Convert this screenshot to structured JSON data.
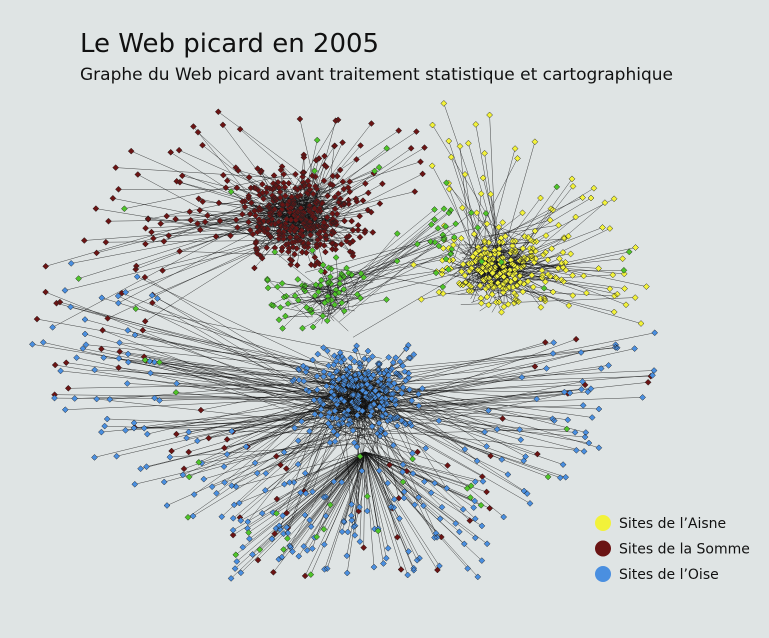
{
  "title": "Le Web picard en 2005",
  "subtitle": "Graphe du Web picard avant traitement statistique et cartographique",
  "legend": [
    {
      "label": "Sites de l’Aisne",
      "color": "#f2f23a"
    },
    {
      "label": "Sites de la Somme",
      "color": "#6b1414"
    },
    {
      "label": "Sites de l’Oise",
      "color": "#4a8fe0"
    }
  ]
}
